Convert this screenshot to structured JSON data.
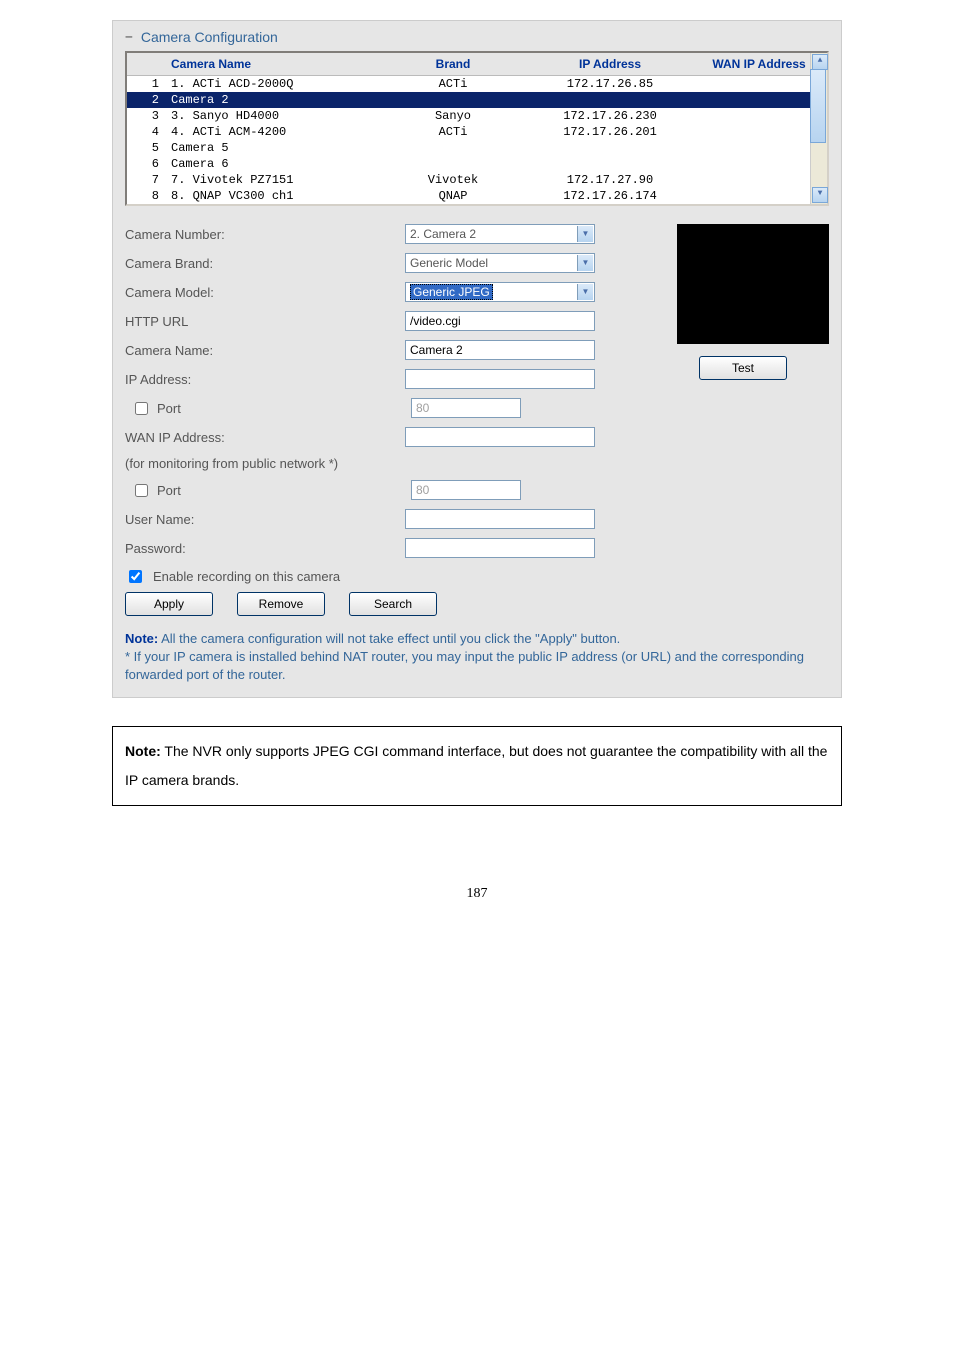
{
  "section_title": "Camera Configuration",
  "table": {
    "headers": {
      "name": "Camera Name",
      "brand": "Brand",
      "ip": "IP Address",
      "wan": "WAN IP Address"
    },
    "rows": [
      {
        "num": "1",
        "name": "1. ACTi ACD-2000Q",
        "brand": "ACTi",
        "ip": "172.17.26.85",
        "wan": "",
        "selected": false
      },
      {
        "num": "2",
        "name": "Camera 2",
        "brand": "",
        "ip": "",
        "wan": "",
        "selected": true
      },
      {
        "num": "3",
        "name": "3. Sanyo HD4000",
        "brand": "Sanyo",
        "ip": "172.17.26.230",
        "wan": "",
        "selected": false
      },
      {
        "num": "4",
        "name": "4. ACTi ACM-4200",
        "brand": "ACTi",
        "ip": "172.17.26.201",
        "wan": "",
        "selected": false
      },
      {
        "num": "5",
        "name": "Camera 5",
        "brand": "",
        "ip": "",
        "wan": "",
        "selected": false
      },
      {
        "num": "6",
        "name": "Camera 6",
        "brand": "",
        "ip": "",
        "wan": "",
        "selected": false
      },
      {
        "num": "7",
        "name": "7. Vivotek PZ7151",
        "brand": "Vivotek",
        "ip": "172.17.27.90",
        "wan": "",
        "selected": false
      },
      {
        "num": "8",
        "name": "8. QNAP VC300 ch1",
        "brand": "QNAP",
        "ip": "172.17.26.174",
        "wan": "",
        "selected": false
      }
    ]
  },
  "form": {
    "camera_number_label": "Camera Number:",
    "camera_number_value": "2. Camera 2",
    "camera_brand_label": "Camera Brand:",
    "camera_brand_value": "Generic Model",
    "camera_model_label": "Camera Model:",
    "camera_model_value": "Generic JPEG",
    "http_url_label": "HTTP URL",
    "http_url_value": "/video.cgi",
    "camera_name_label": "Camera Name:",
    "camera_name_value": "Camera 2",
    "ip_address_label": "IP Address:",
    "ip_address_value": "",
    "port_label": "Port",
    "port_value": "80",
    "wan_ip_label": "WAN IP Address:",
    "wan_ip_value": "",
    "public_note": "(for monitoring from public network *)",
    "port2_label": "Port",
    "port2_value": "80",
    "user_name_label": "User Name:",
    "user_name_value": "",
    "password_label": "Password:",
    "password_value": "",
    "enable_recording_label": "Enable recording on this camera",
    "test_btn": "Test",
    "apply_btn": "Apply",
    "remove_btn": "Remove",
    "search_btn": "Search"
  },
  "note_html": {
    "bold": "Note:",
    "line1": " All the camera configuration will not take effect until you click the \"Apply\" button.",
    "line2": "* If your IP camera is installed behind NAT router, you may input the public IP address (or URL) and the corresponding forwarded port of the router."
  },
  "bottom_note": {
    "bold": "Note:",
    "text": " The NVR only supports JPEG CGI command interface, but does not guarantee the compatibility with all the IP camera brands."
  },
  "page_number": "187"
}
